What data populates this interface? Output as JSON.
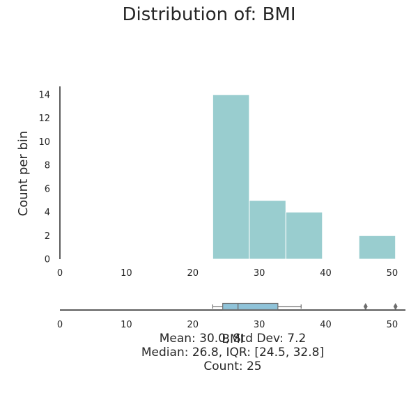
{
  "chart_data": {
    "type": "bar",
    "title": "Distribution of: BMI",
    "ylabel": "Count per bin",
    "xlabel": "BMI",
    "xlim": [
      0,
      52
    ],
    "ylim": [
      0,
      14.7
    ],
    "x_ticks": [
      0,
      10,
      20,
      30,
      40,
      50
    ],
    "y_ticks": [
      0,
      2,
      4,
      6,
      8,
      10,
      12,
      14
    ],
    "bins": [
      {
        "start": 23.0,
        "end": 28.5,
        "count": 14
      },
      {
        "start": 28.5,
        "end": 34.0,
        "count": 5
      },
      {
        "start": 34.0,
        "end": 39.5,
        "count": 4
      },
      {
        "start": 39.5,
        "end": 45.0,
        "count": 0
      },
      {
        "start": 45.0,
        "end": 50.5,
        "count": 2
      }
    ],
    "boxplot": {
      "whisker_low": 23.0,
      "q1": 24.5,
      "median": 26.8,
      "q3": 32.8,
      "whisker_high": 36.3,
      "outliers": [
        46.0,
        50.5
      ]
    },
    "bar_color": "#99cdcf",
    "box_color": "#8fc3d9",
    "stats_lines": [
      "Mean: 30.0, Std Dev: 7.2",
      "Median: 26.8, IQR: [24.5, 32.8]",
      "Count: 25"
    ]
  }
}
